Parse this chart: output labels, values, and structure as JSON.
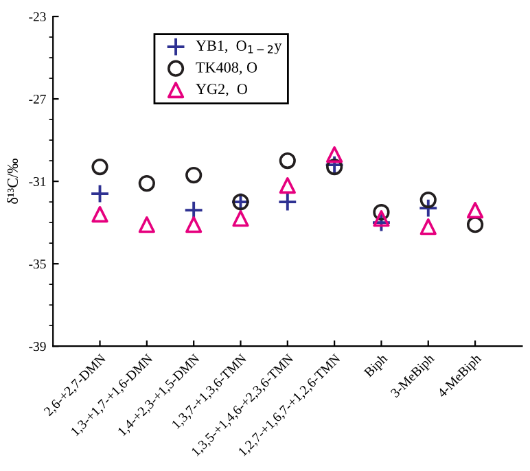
{
  "chart_data": {
    "type": "scatter",
    "ylabel": "δ¹³C/‰",
    "categories": [
      "2,6-+2,7-DMN",
      "1,3-+1,7-+1,6-DMN",
      "1,4-+2,3-+1,5-DMN",
      "1,3,7-+1,3,6-TMN",
      "1,3,5-+1,4,6-+2,3,6-TMN",
      "1,2,7-+1,6,7-+1,2,6-TMN",
      "Biph",
      "3-MeBiph",
      "4-MeBiph"
    ],
    "series": [
      {
        "name": "YB1,  O$_{1−2}$y",
        "color": "#2e3192",
        "marker": "cross",
        "values": [
          -31.6,
          null,
          -32.4,
          -32.0,
          -32.0,
          -30.2,
          -33.0,
          -32.3,
          null
        ]
      },
      {
        "name": "TK408, O",
        "color": "#231f20",
        "marker": "circle",
        "values": [
          -30.3,
          -31.1,
          -30.7,
          -32.0,
          -30.0,
          -30.3,
          -32.5,
          -31.9,
          -33.1
        ]
      },
      {
        "name": "YG2,  O",
        "color": "#e6007e",
        "marker": "triangle",
        "values": [
          -32.6,
          -33.1,
          -33.1,
          -32.8,
          -31.2,
          -29.7,
          -32.8,
          -33.2,
          -32.4
        ]
      }
    ],
    "ylim": [
      -39,
      -23
    ],
    "yticks": [
      -39,
      -35,
      -31,
      -27,
      -23
    ],
    "grid": false,
    "legend": "top left"
  }
}
